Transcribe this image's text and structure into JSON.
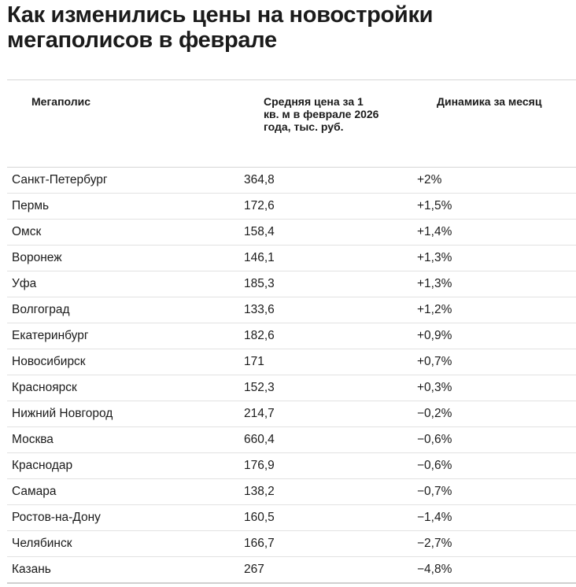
{
  "title": "Как изменились цены на новостройки мегаполисов в феврале",
  "table": {
    "headers": {
      "city": "Мегаполис",
      "price": "Средняя цена за 1 кв. м в феврале 2026 года, тыс. руб.",
      "change": "Динамика за месяц"
    },
    "rows": [
      {
        "city": "Санкт-Петербург",
        "price": "364,8",
        "change": "+2%"
      },
      {
        "city": "Пермь",
        "price": "172,6",
        "change": "+1,5%"
      },
      {
        "city": "Омск",
        "price": "158,4",
        "change": "+1,4%"
      },
      {
        "city": "Воронеж",
        "price": "146,1",
        "change": "+1,3%"
      },
      {
        "city": "Уфа",
        "price": "185,3",
        "change": "+1,3%"
      },
      {
        "city": "Волгоград",
        "price": "133,6",
        "change": "+1,2%"
      },
      {
        "city": "Екатеринбург",
        "price": "182,6",
        "change": "+0,9%"
      },
      {
        "city": "Новосибирск",
        "price": "171",
        "change": "+0,7%"
      },
      {
        "city": "Красноярск",
        "price": "152,3",
        "change": "+0,3%"
      },
      {
        "city": "Нижний Новгород",
        "price": "214,7",
        "change": "−0,2%"
      },
      {
        "city": "Москва",
        "price": "660,4",
        "change": "−0,6%"
      },
      {
        "city": "Краснодар",
        "price": "176,9",
        "change": "−0,6%"
      },
      {
        "city": "Самара",
        "price": "138,2",
        "change": "−0,7%"
      },
      {
        "city": "Ростов-на-Дону",
        "price": "160,5",
        "change": "−1,4%"
      },
      {
        "city": "Челябинск",
        "price": "166,7",
        "change": "−2,7%"
      },
      {
        "city": "Казань",
        "price": "267",
        "change": "−4,8%"
      }
    ]
  }
}
